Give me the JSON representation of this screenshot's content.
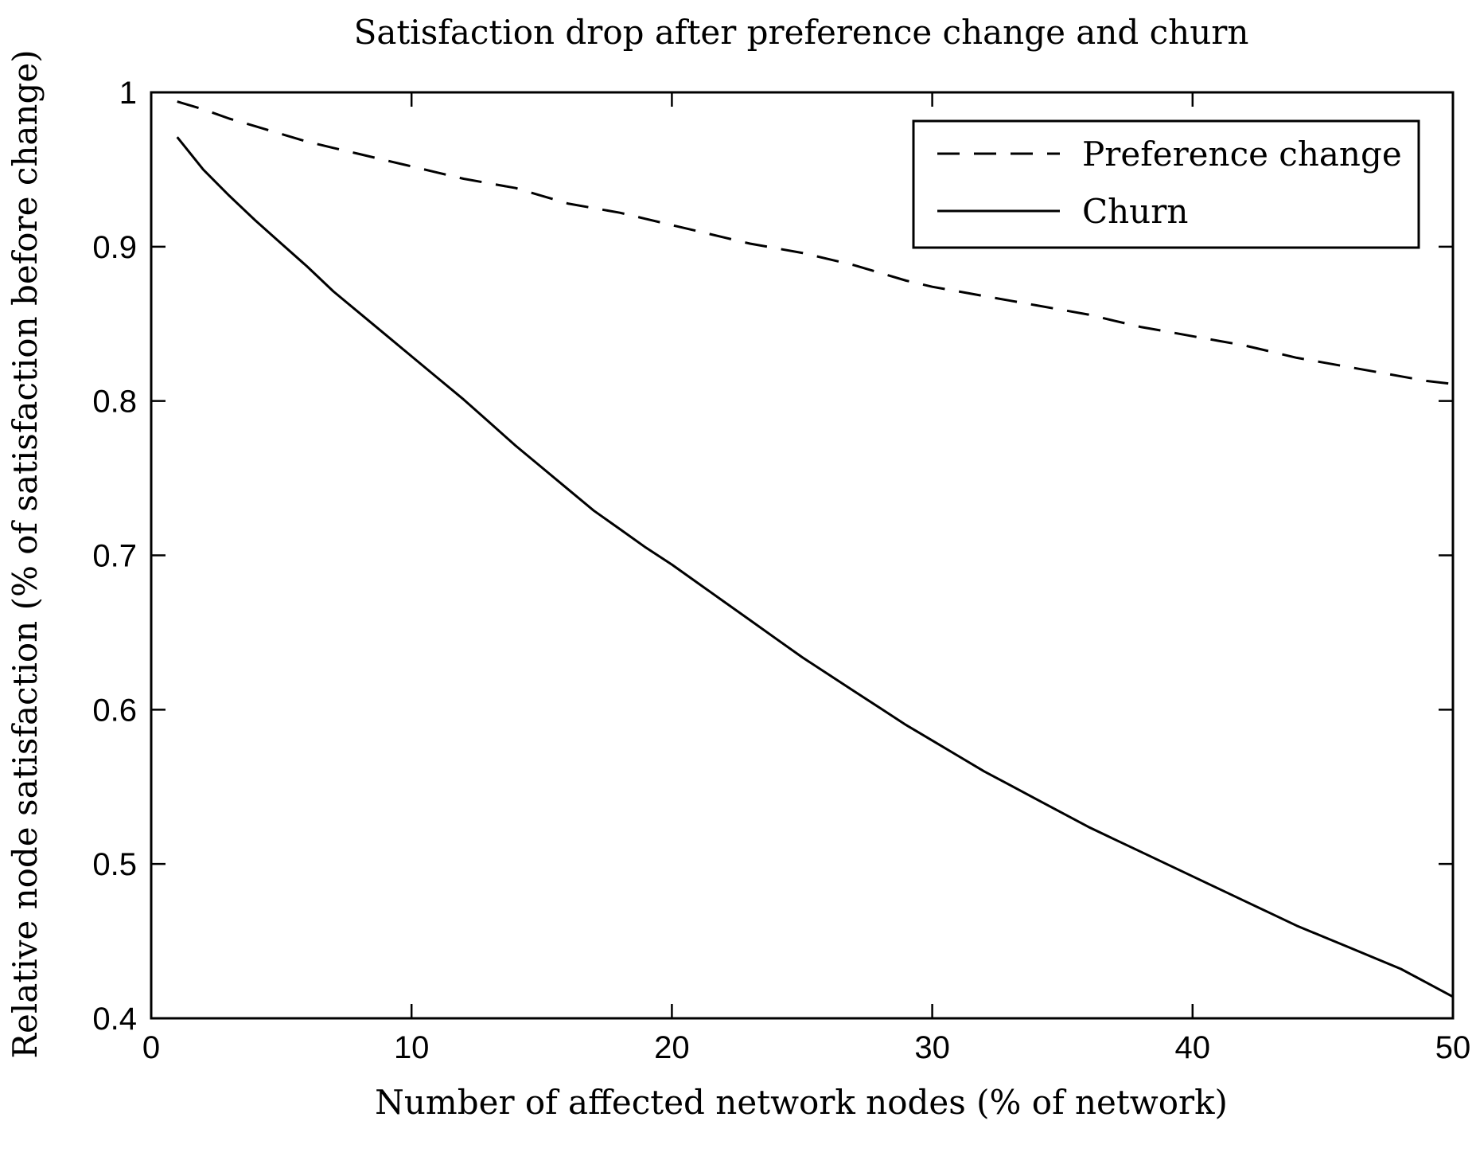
{
  "chart_data": {
    "type": "line",
    "title": "Satisfaction drop after preference change and churn",
    "xlabel": "Number of affected network nodes (% of network)",
    "ylabel": "Relative node satisfaction (% of satisfaction before change)",
    "xlim": [
      0,
      50
    ],
    "ylim": [
      0.4,
      1.0
    ],
    "xticks": [
      0,
      10,
      20,
      30,
      40,
      50
    ],
    "xtick_labels": [
      "0",
      "10",
      "20",
      "30",
      "40",
      "50"
    ],
    "yticks": [
      0.4,
      0.5,
      0.6,
      0.7,
      0.8,
      0.9,
      1.0
    ],
    "ytick_labels": [
      "0.4",
      "0.5",
      "0.6",
      "0.7",
      "0.8",
      "0.9",
      "1"
    ],
    "grid": false,
    "legend_position": "top-right",
    "x": [
      1,
      2,
      3,
      4,
      5,
      6,
      7,
      8,
      9,
      10,
      11,
      12,
      13,
      14,
      15,
      16,
      17,
      18,
      19,
      20,
      21,
      22,
      23,
      24,
      25,
      26,
      27,
      28,
      29,
      30,
      31,
      32,
      33,
      34,
      35,
      36,
      37,
      38,
      39,
      40,
      41,
      42,
      43,
      44,
      45,
      46,
      47,
      48,
      49,
      50
    ],
    "series": [
      {
        "name": "Preference change",
        "style": "dashed",
        "color": "#000000",
        "values": [
          0.994,
          0.989,
          0.983,
          0.978,
          0.973,
          0.968,
          0.964,
          0.96,
          0.956,
          0.952,
          0.948,
          0.944,
          0.941,
          0.938,
          0.933,
          0.928,
          0.925,
          0.922,
          0.918,
          0.914,
          0.91,
          0.906,
          0.902,
          0.899,
          0.896,
          0.892,
          0.888,
          0.883,
          0.878,
          0.874,
          0.871,
          0.868,
          0.865,
          0.862,
          0.859,
          0.856,
          0.852,
          0.848,
          0.845,
          0.842,
          0.839,
          0.836,
          0.832,
          0.828,
          0.825,
          0.822,
          0.819,
          0.816,
          0.813,
          0.811
        ]
      },
      {
        "name": "Churn",
        "style": "solid",
        "color": "#000000",
        "values": [
          0.971,
          0.95,
          0.933,
          0.917,
          0.902,
          0.887,
          0.871,
          0.857,
          0.843,
          0.829,
          0.815,
          0.801,
          0.786,
          0.771,
          0.757,
          0.743,
          0.729,
          0.717,
          0.705,
          0.694,
          0.682,
          0.67,
          0.658,
          0.646,
          0.634,
          0.623,
          0.612,
          0.601,
          0.59,
          0.58,
          0.57,
          0.56,
          0.551,
          0.542,
          0.533,
          0.524,
          0.516,
          0.508,
          0.5,
          0.492,
          0.484,
          0.476,
          0.468,
          0.46,
          0.453,
          0.446,
          0.439,
          0.432,
          0.423,
          0.414
        ]
      }
    ]
  }
}
